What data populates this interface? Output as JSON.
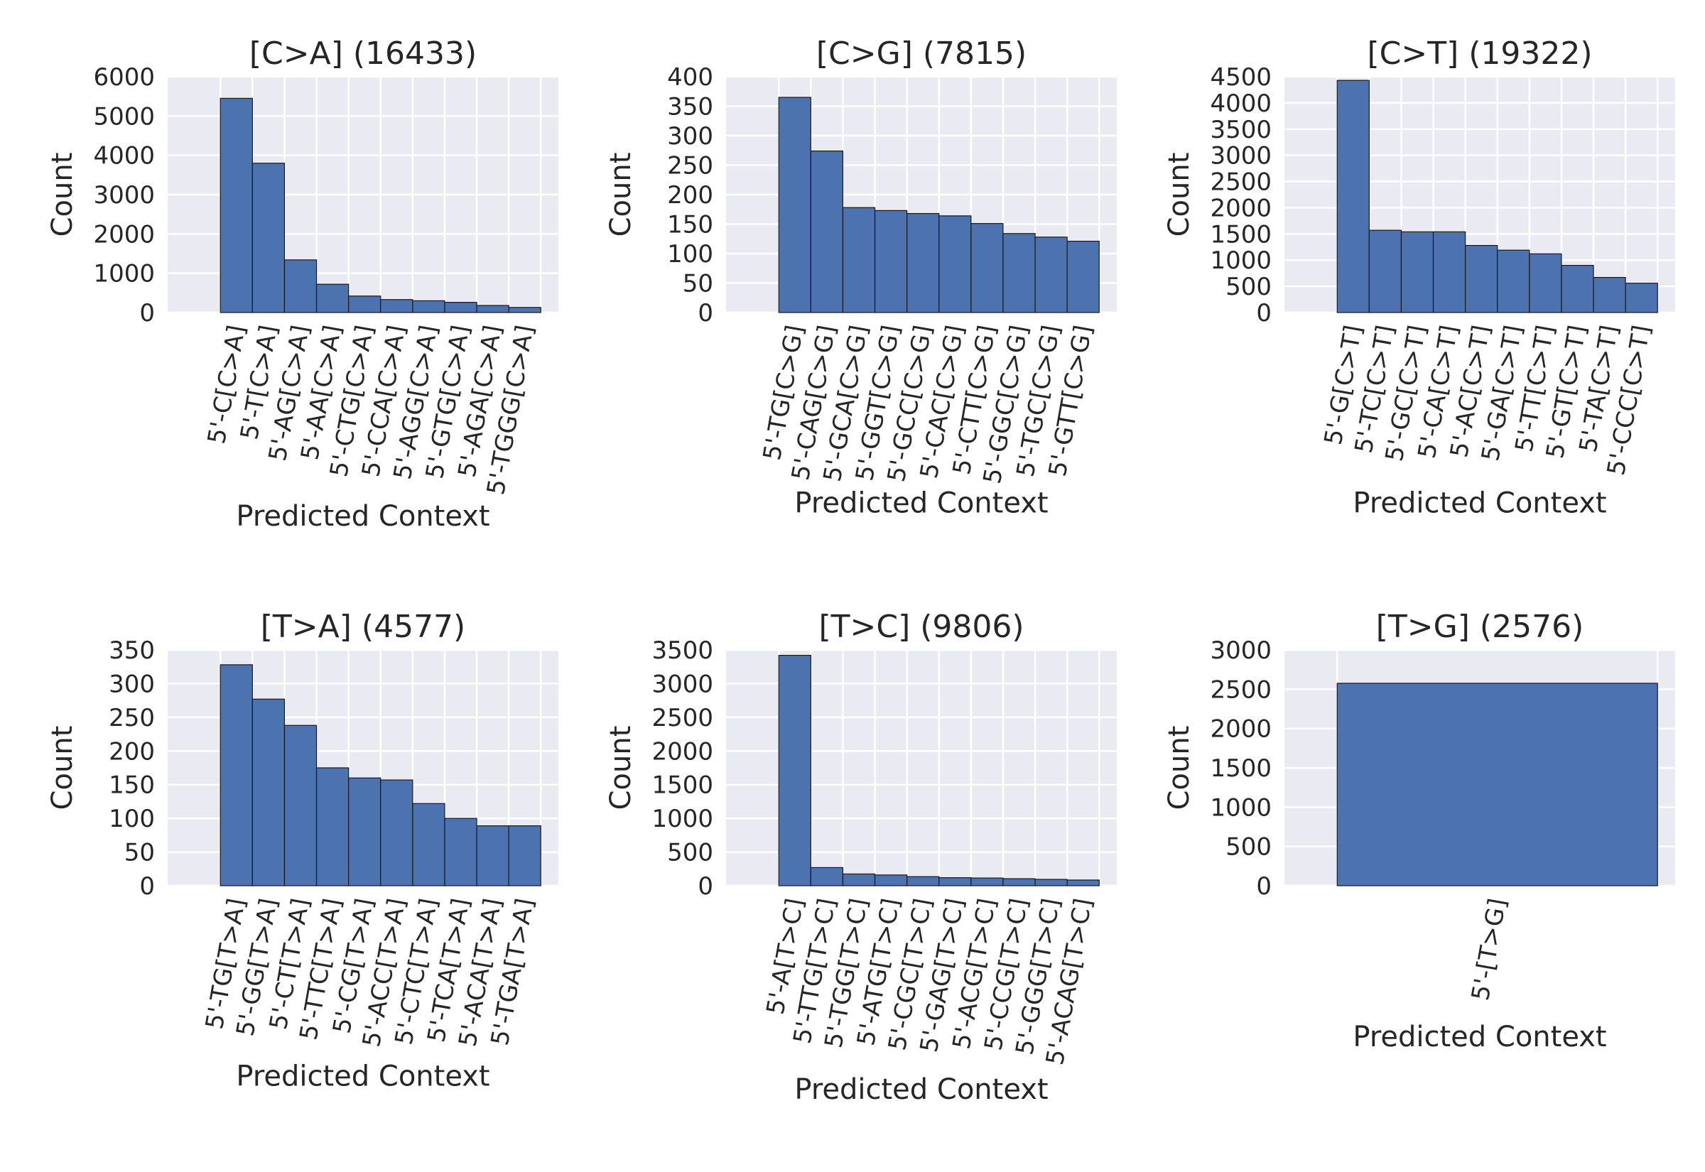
{
  "chart_data": [
    {
      "type": "bar",
      "title": "[C>A] (16433)",
      "xlabel": "Predicted Context",
      "ylabel": "Count",
      "ylim": [
        0,
        6000
      ],
      "yticks": [
        0,
        1000,
        2000,
        3000,
        4000,
        5000,
        6000
      ],
      "categories": [
        "5'-C[C>A]",
        "5'-T[C>A]",
        "5'-AG[C>A]",
        "5'-AA[C>A]",
        "5'-CTG[C>A]",
        "5'-CCA[C>A]",
        "5'-AGG[C>A]",
        "5'-GTG[C>A]",
        "5'-AGA[C>A]",
        "5'-TGGG[C>A]"
      ],
      "values": [
        5450,
        3800,
        1340,
        720,
        420,
        330,
        300,
        260,
        180,
        130
      ],
      "bar_color": "#4c72b0",
      "grid": true
    },
    {
      "type": "bar",
      "title": "[C>G] (7815)",
      "xlabel": "Predicted Context",
      "ylabel": "Count",
      "ylim": [
        0,
        400
      ],
      "yticks": [
        0,
        50,
        100,
        150,
        200,
        250,
        300,
        350,
        400
      ],
      "categories": [
        "5'-TG[C>G]",
        "5'-CAG[C>G]",
        "5'-GCA[C>G]",
        "5'-GGT[C>G]",
        "5'-GCC[C>G]",
        "5'-CAC[C>G]",
        "5'-CTT[C>G]",
        "5'-GGC[C>G]",
        "5'-TGC[C>G]",
        "5'-GTT[C>G]"
      ],
      "values": [
        365,
        274,
        178,
        173,
        168,
        164,
        151,
        134,
        128,
        121
      ],
      "bar_color": "#4c72b0",
      "grid": true
    },
    {
      "type": "bar",
      "title": "[C>T] (19322)",
      "xlabel": "Predicted Context",
      "ylabel": "Count",
      "ylim": [
        0,
        4500
      ],
      "yticks": [
        0,
        500,
        1000,
        1500,
        2000,
        2500,
        3000,
        3500,
        4000,
        4500
      ],
      "categories": [
        "5'-G[C>T]",
        "5'-TC[C>T]",
        "5'-GC[C>T]",
        "5'-CA[C>T]",
        "5'-AC[C>T]",
        "5'-GA[C>T]",
        "5'-TT[C>T]",
        "5'-GT[C>T]",
        "5'-TA[C>T]",
        "5'-CCC[C>T]"
      ],
      "values": [
        4430,
        1570,
        1540,
        1540,
        1280,
        1190,
        1120,
        900,
        670,
        560
      ],
      "bar_color": "#4c72b0",
      "grid": true
    },
    {
      "type": "bar",
      "title": "[T>A] (4577)",
      "xlabel": "Predicted Context",
      "ylabel": "Count",
      "ylim": [
        0,
        350
      ],
      "yticks": [
        0,
        50,
        100,
        150,
        200,
        250,
        300,
        350
      ],
      "categories": [
        "5'-TG[T>A]",
        "5'-GG[T>A]",
        "5'-CT[T>A]",
        "5'-TTC[T>A]",
        "5'-CG[T>A]",
        "5'-ACC[T>A]",
        "5'-CTC[T>A]",
        "5'-TCA[T>A]",
        "5'-ACA[T>A]",
        "5'-TGA[T>A]"
      ],
      "values": [
        328,
        277,
        238,
        175,
        160,
        157,
        122,
        100,
        89,
        89
      ],
      "bar_color": "#4c72b0",
      "grid": true
    },
    {
      "type": "bar",
      "title": "[T>C] (9806)",
      "xlabel": "Predicted Context",
      "ylabel": "Count",
      "ylim": [
        0,
        3500
      ],
      "yticks": [
        0,
        500,
        1000,
        1500,
        2000,
        2500,
        3000,
        3500
      ],
      "categories": [
        "5'-A[T>C]",
        "5'-TTG[T>C]",
        "5'-TGG[T>C]",
        "5'-ATG[T>C]",
        "5'-CGC[T>C]",
        "5'-GAG[T>C]",
        "5'-ACG[T>C]",
        "5'-CCG[T>C]",
        "5'-GGG[T>C]",
        "5'-ACAG[T>C]"
      ],
      "values": [
        3420,
        270,
        175,
        160,
        135,
        120,
        115,
        105,
        95,
        85
      ],
      "bar_color": "#4c72b0",
      "grid": true
    },
    {
      "type": "bar",
      "title": "[T>G] (2576)",
      "xlabel": "Predicted Context",
      "ylabel": "Count",
      "ylim": [
        0,
        3000
      ],
      "yticks": [
        0,
        500,
        1000,
        1500,
        2000,
        2500,
        3000
      ],
      "categories": [
        "5'-[T>G]"
      ],
      "values": [
        2576
      ],
      "bar_color": "#4c72b0",
      "grid": true
    }
  ],
  "colors": {
    "background": "#eaeaf2",
    "grid": "#ffffff",
    "bar": "#4c72b0",
    "bar_edge": "#1a1a1a",
    "text": "#262626"
  }
}
